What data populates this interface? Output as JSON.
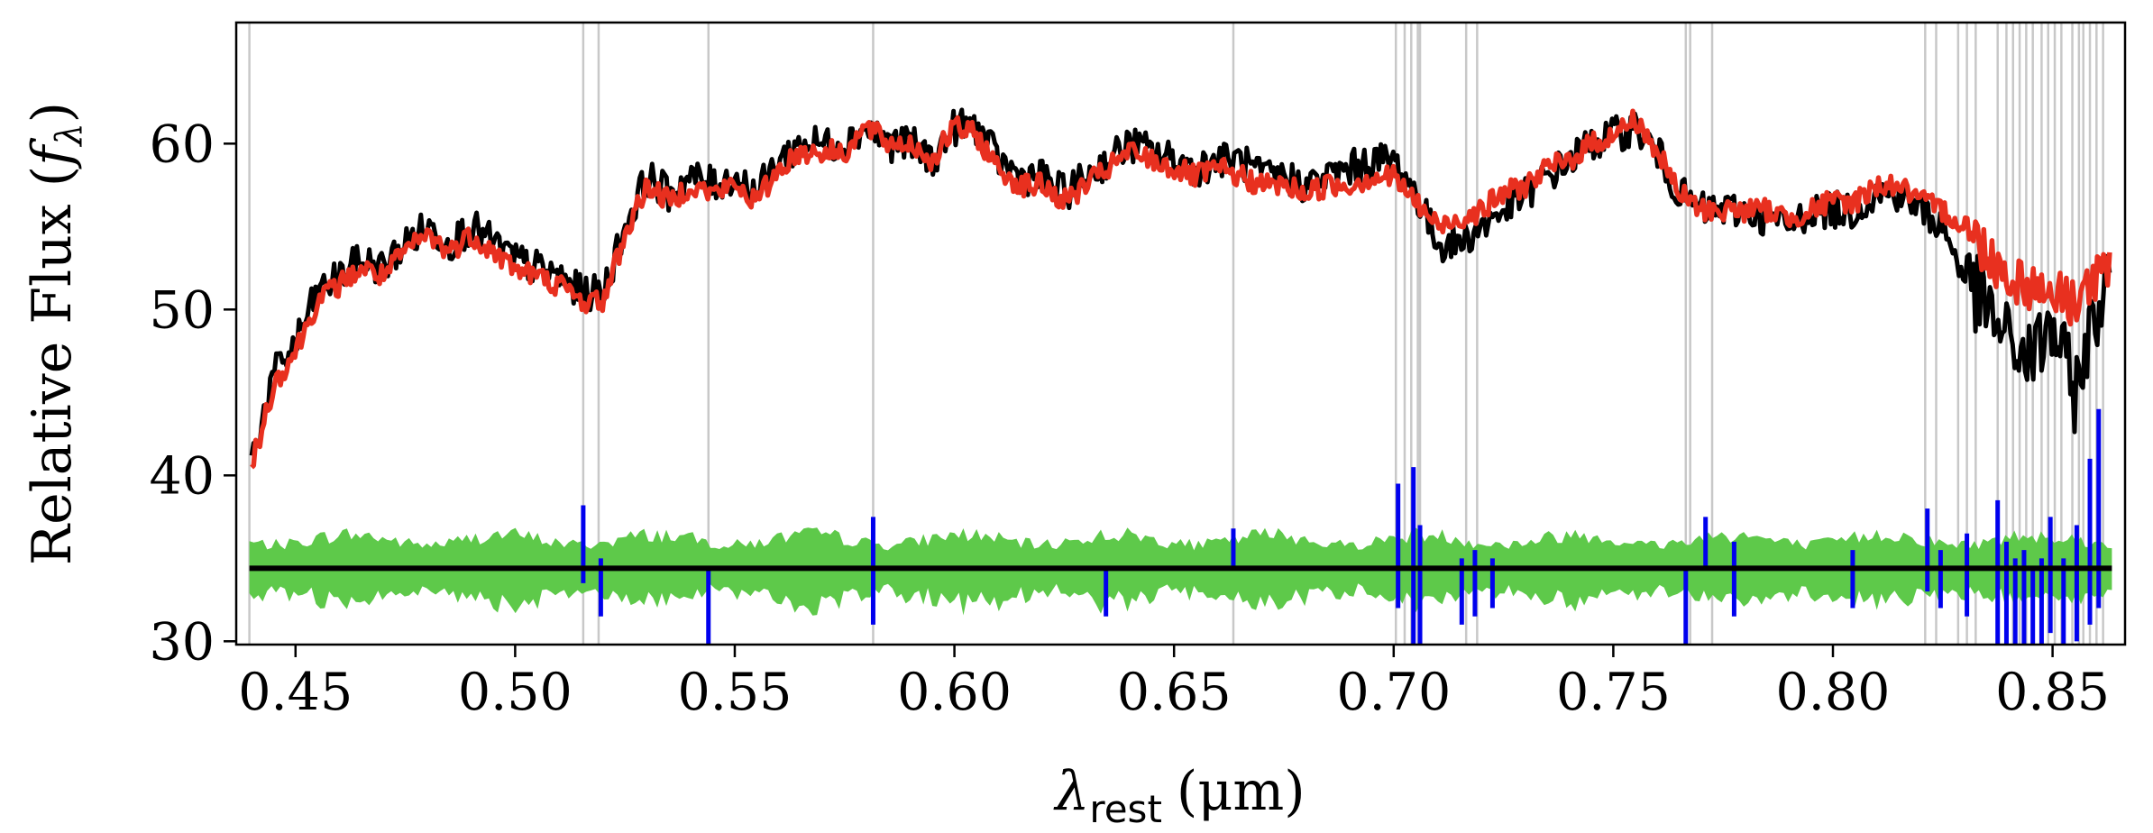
{
  "chart_data": {
    "type": "line",
    "title": "",
    "xlabel_symbol": "λ",
    "xlabel_sub": "rest",
    "xlabel_unit": "(μm)",
    "ylabel_text": "Relative Flux (",
    "ylabel_symbol": "f",
    "ylabel_sub": "λ",
    "ylabel_close": ")",
    "xlim": [
      0.4365,
      0.8665
    ],
    "ylim": [
      29.8,
      67.3
    ],
    "xticks": [
      0.45,
      0.5,
      0.55,
      0.6,
      0.65,
      0.7,
      0.75,
      0.8,
      0.85
    ],
    "xtick_labels": [
      "0.45",
      "0.50",
      "0.55",
      "0.60",
      "0.65",
      "0.70",
      "0.75",
      "0.80",
      "0.85"
    ],
    "yticks": [
      30,
      40,
      50,
      60
    ],
    "ytick_labels": [
      "30",
      "40",
      "50",
      "60"
    ],
    "grid": false,
    "legend": "none",
    "colors": {
      "observed": "#000000",
      "model": "#e8301f",
      "noise_band": "#5ec94a",
      "residual": "#0000ee",
      "zero_line": "#000000",
      "masked": "#c8c8c8"
    },
    "masked_lines": [
      0.4395,
      0.5155,
      0.519,
      0.544,
      0.5815,
      0.6635,
      0.7005,
      0.7025,
      0.704,
      0.7055,
      0.706,
      0.7165,
      0.719,
      0.7665,
      0.7675,
      0.7725,
      0.821,
      0.8235,
      0.8285,
      0.8305,
      0.8325,
      0.8375,
      0.8395,
      0.841,
      0.8425,
      0.844,
      0.8455,
      0.8475,
      0.849,
      0.8505,
      0.852,
      0.8545,
      0.856,
      0.857,
      0.8585,
      0.86,
      0.8615
    ],
    "series": [
      {
        "role": "observed",
        "x": [
          0.44,
          0.445,
          0.45,
          0.455,
          0.46,
          0.465,
          0.47,
          0.475,
          0.48,
          0.485,
          0.49,
          0.495,
          0.5,
          0.505,
          0.51,
          0.515,
          0.52,
          0.525,
          0.53,
          0.535,
          0.54,
          0.545,
          0.55,
          0.555,
          0.56,
          0.565,
          0.57,
          0.575,
          0.58,
          0.585,
          0.59,
          0.595,
          0.6,
          0.605,
          0.61,
          0.615,
          0.62,
          0.625,
          0.63,
          0.635,
          0.64,
          0.645,
          0.65,
          0.655,
          0.66,
          0.665,
          0.67,
          0.675,
          0.68,
          0.685,
          0.69,
          0.695,
          0.7,
          0.705,
          0.71,
          0.715,
          0.72,
          0.725,
          0.73,
          0.735,
          0.74,
          0.745,
          0.75,
          0.755,
          0.76,
          0.765,
          0.77,
          0.775,
          0.78,
          0.785,
          0.79,
          0.795,
          0.8,
          0.805,
          0.81,
          0.815,
          0.82,
          0.825,
          0.83,
          0.835,
          0.84,
          0.845,
          0.85,
          0.855,
          0.86,
          0.863
        ],
        "y": [
          41,
          46,
          48,
          51,
          52,
          53,
          52.5,
          54,
          55,
          54,
          55,
          54,
          53,
          52.5,
          52,
          51,
          51,
          55,
          58,
          57,
          58,
          57.5,
          58,
          57,
          59,
          60,
          60,
          60,
          61,
          60,
          60,
          59,
          61,
          61,
          59,
          58,
          58,
          57,
          58,
          59,
          60,
          59.5,
          59,
          58.5,
          59,
          59,
          58,
          58,
          57.5,
          58,
          58.5,
          59,
          59,
          57,
          54,
          54,
          55,
          56,
          57,
          58,
          59,
          60,
          60.5,
          61,
          59.5,
          57,
          56,
          56,
          56,
          55.5,
          55,
          56,
          56,
          56,
          57,
          57,
          56,
          55,
          52,
          50,
          48,
          47,
          49,
          45,
          50,
          52
        ]
      },
      {
        "role": "model",
        "x": [
          0.44,
          0.445,
          0.45,
          0.455,
          0.46,
          0.465,
          0.47,
          0.475,
          0.48,
          0.485,
          0.49,
          0.495,
          0.5,
          0.505,
          0.51,
          0.515,
          0.52,
          0.525,
          0.53,
          0.535,
          0.54,
          0.545,
          0.55,
          0.555,
          0.56,
          0.565,
          0.57,
          0.575,
          0.58,
          0.585,
          0.59,
          0.595,
          0.6,
          0.605,
          0.61,
          0.615,
          0.62,
          0.625,
          0.63,
          0.635,
          0.64,
          0.645,
          0.65,
          0.655,
          0.66,
          0.665,
          0.67,
          0.675,
          0.68,
          0.685,
          0.69,
          0.695,
          0.7,
          0.705,
          0.71,
          0.715,
          0.72,
          0.725,
          0.73,
          0.735,
          0.74,
          0.745,
          0.75,
          0.755,
          0.76,
          0.765,
          0.77,
          0.775,
          0.78,
          0.785,
          0.79,
          0.795,
          0.8,
          0.805,
          0.81,
          0.815,
          0.82,
          0.825,
          0.83,
          0.835,
          0.84,
          0.845,
          0.85,
          0.855,
          0.86,
          0.863
        ],
        "y": [
          40.5,
          45.5,
          47.5,
          50.5,
          51.5,
          52.5,
          52,
          53.5,
          54.5,
          53.5,
          54.5,
          53.5,
          52.5,
          52,
          51.5,
          50.5,
          50.5,
          54.5,
          57.5,
          56.5,
          57.5,
          57,
          57.5,
          56.5,
          58.5,
          59.5,
          59.5,
          59.5,
          61,
          60,
          60,
          59,
          61,
          60.5,
          58.5,
          57.5,
          57.5,
          56.5,
          57.5,
          58.5,
          59.5,
          59,
          58.5,
          58,
          58.5,
          58,
          57.5,
          57.5,
          57,
          57.5,
          57.5,
          58,
          58,
          56.5,
          55,
          55.5,
          56,
          57,
          57.5,
          58.5,
          59,
          60,
          60.5,
          61.5,
          59.5,
          57,
          56,
          56,
          56,
          56,
          55.5,
          56,
          56.5,
          56.5,
          57.5,
          57.5,
          56.5,
          56,
          55,
          53.5,
          52,
          51.5,
          51,
          50.5,
          52,
          52
        ]
      }
    ],
    "noise_band": {
      "center": 34.4,
      "half_width": 2.2
    },
    "zero_line": {
      "y": 34.4,
      "x_range": [
        0.4395,
        0.8635
      ]
    },
    "residual_spikes": [
      {
        "x": 0.5155,
        "low": 33.5,
        "high": 38.2
      },
      {
        "x": 0.5195,
        "low": 31.5,
        "high": 35.0
      },
      {
        "x": 0.544,
        "low": 29.8,
        "high": 34.4
      },
      {
        "x": 0.5815,
        "low": 31.0,
        "high": 37.5
      },
      {
        "x": 0.6345,
        "low": 31.5,
        "high": 34.4
      },
      {
        "x": 0.6635,
        "low": 34.4,
        "high": 36.8
      },
      {
        "x": 0.701,
        "low": 32.0,
        "high": 39.5
      },
      {
        "x": 0.7045,
        "low": 29.8,
        "high": 40.5
      },
      {
        "x": 0.706,
        "low": 29.8,
        "high": 37.0
      },
      {
        "x": 0.7155,
        "low": 31.0,
        "high": 35.0
      },
      {
        "x": 0.7185,
        "low": 31.5,
        "high": 35.5
      },
      {
        "x": 0.7225,
        "low": 32.0,
        "high": 35.0
      },
      {
        "x": 0.7665,
        "low": 29.8,
        "high": 34.4
      },
      {
        "x": 0.771,
        "low": 34.4,
        "high": 37.5
      },
      {
        "x": 0.7775,
        "low": 31.5,
        "high": 36.0
      },
      {
        "x": 0.8045,
        "low": 32.0,
        "high": 35.5
      },
      {
        "x": 0.8215,
        "low": 33.0,
        "high": 38.0
      },
      {
        "x": 0.8245,
        "low": 32.0,
        "high": 35.5
      },
      {
        "x": 0.8305,
        "low": 31.5,
        "high": 36.5
      },
      {
        "x": 0.8375,
        "low": 29.8,
        "high": 38.5
      },
      {
        "x": 0.8395,
        "low": 29.8,
        "high": 36.0
      },
      {
        "x": 0.8415,
        "low": 29.8,
        "high": 35.0
      },
      {
        "x": 0.8435,
        "low": 29.8,
        "high": 35.5
      },
      {
        "x": 0.8455,
        "low": 29.8,
        "high": 34.5
      },
      {
        "x": 0.8475,
        "low": 29.8,
        "high": 35.0
      },
      {
        "x": 0.8495,
        "low": 30.5,
        "high": 37.5
      },
      {
        "x": 0.8525,
        "low": 29.8,
        "high": 35.0
      },
      {
        "x": 0.8555,
        "low": 30.0,
        "high": 37.0
      },
      {
        "x": 0.8585,
        "low": 31.0,
        "high": 41.0
      },
      {
        "x": 0.8605,
        "low": 32.0,
        "high": 44.0
      }
    ]
  }
}
